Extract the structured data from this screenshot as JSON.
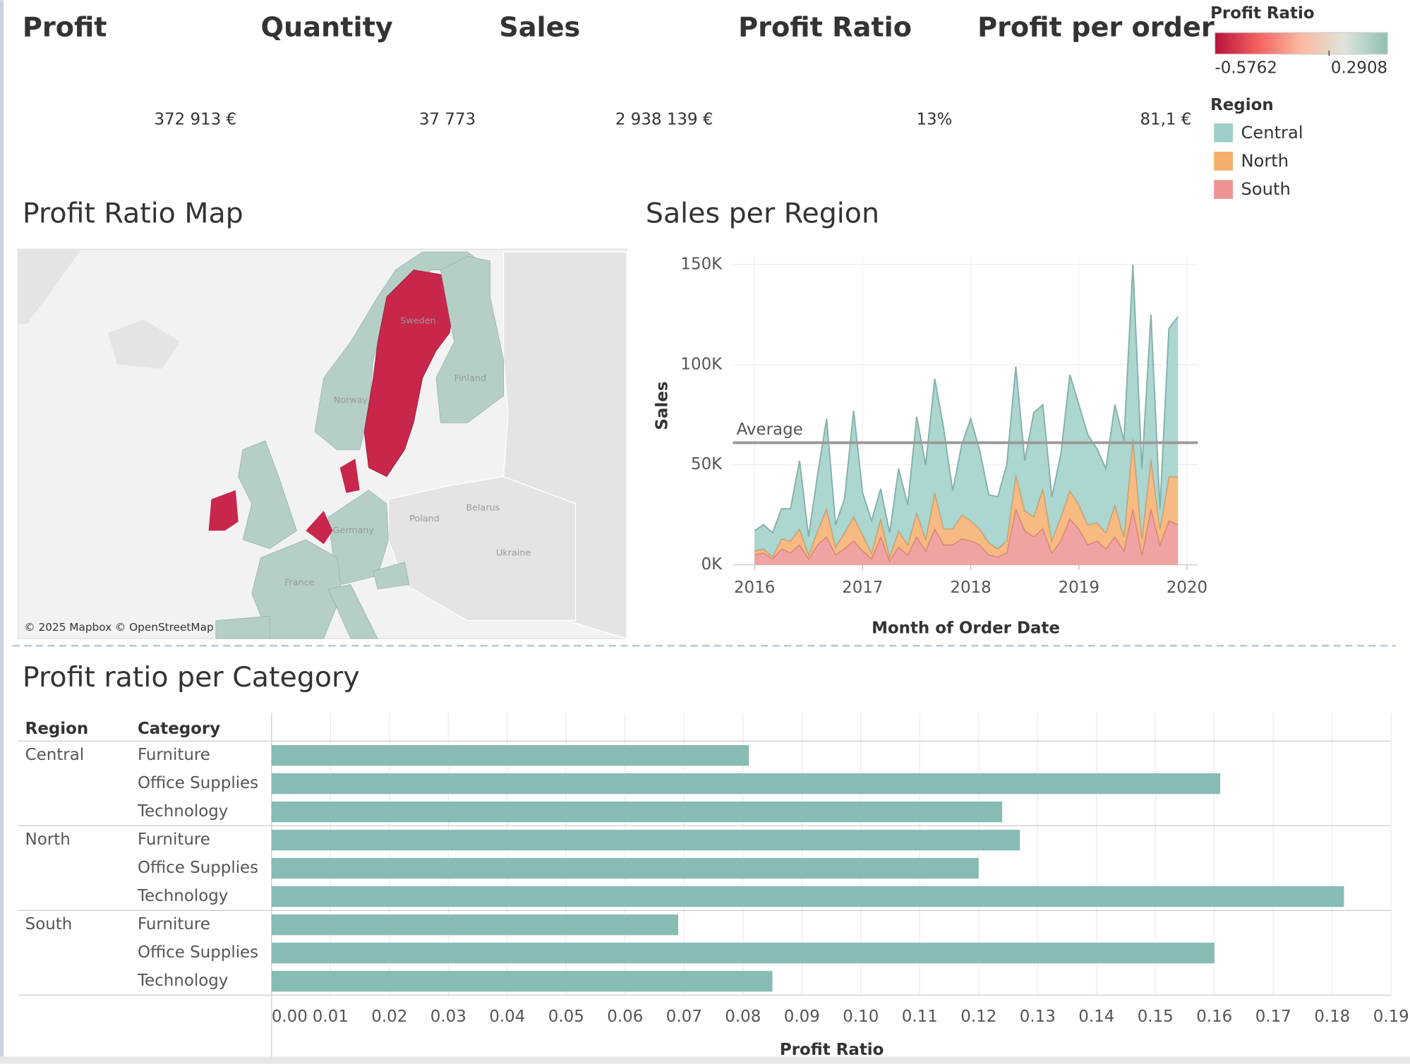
{
  "kpis": [
    {
      "title": "Profit",
      "value": "372 913 €"
    },
    {
      "title": "Quantity",
      "value": "37 773"
    },
    {
      "title": "Sales",
      "value": "2 938 139 €"
    },
    {
      "title": "Profit Ratio",
      "value": "13%"
    },
    {
      "title": "Profit per order",
      "value": "81,1 €"
    }
  ],
  "color_legend": {
    "title": "Profit Ratio",
    "min": -0.5762,
    "max": 0.2908,
    "colors": [
      "#b8123c",
      "#f4625f",
      "#fbb99f",
      "#dfe3dc",
      "#8fc1b0"
    ]
  },
  "map": {
    "title": "Profit Ratio Map",
    "labels": [
      "Sweden",
      "Finland",
      "Norway",
      "Germany",
      "France",
      "Poland",
      "Belarus",
      "Ukraine"
    ],
    "attribution": "© 2025 Mapbox © OpenStreetMap"
  },
  "chart_data": [
    {
      "type": "area",
      "title": "Sales per Region",
      "x_label": "Month of Order Date",
      "y_label": "Sales",
      "legend_title": "Region",
      "x": [
        2016,
        2016.083,
        2016.167,
        2016.25,
        2016.333,
        2016.417,
        2016.5,
        2016.583,
        2016.667,
        2016.75,
        2016.833,
        2016.917,
        2017,
        2017.083,
        2017.167,
        2017.25,
        2017.333,
        2017.417,
        2017.5,
        2017.583,
        2017.667,
        2017.75,
        2017.833,
        2017.917,
        2018,
        2018.083,
        2018.167,
        2018.25,
        2018.333,
        2018.417,
        2018.5,
        2018.583,
        2018.667,
        2018.75,
        2018.833,
        2018.917,
        2019,
        2019.083,
        2019.167,
        2019.25,
        2019.333,
        2019.417,
        2019.5,
        2019.583,
        2019.667,
        2019.75,
        2019.833,
        2019.917
      ],
      "xlim": [
        2015.8,
        2020.1
      ],
      "xticks": [
        2016,
        2017,
        2018,
        2019,
        2020
      ],
      "ylim": [
        0,
        150000
      ],
      "yticks": [
        {
          "value": 0,
          "label": "0K"
        },
        {
          "value": 50000,
          "label": "50K"
        },
        {
          "value": 100000,
          "label": "100K"
        },
        {
          "value": 150000,
          "label": "150K"
        }
      ],
      "grid": true,
      "reference_line": {
        "label": "Average",
        "value": 61000
      },
      "series": [
        {
          "name": "Central",
          "color": "#9dcfc8",
          "values": [
            10000,
            12000,
            12000,
            15000,
            16000,
            34000,
            9000,
            28000,
            45000,
            11000,
            17000,
            53000,
            21000,
            16000,
            15000,
            12000,
            31000,
            20000,
            48000,
            37000,
            57000,
            50000,
            19000,
            35000,
            51000,
            39000,
            24000,
            26000,
            38000,
            54000,
            25000,
            52000,
            42000,
            22000,
            31000,
            58000,
            50000,
            45000,
            37000,
            32000,
            50000,
            48000,
            87000,
            35000,
            72000,
            10000,
            74000,
            80000
          ]
        },
        {
          "name": "North",
          "color": "#f5ae6c",
          "values": [
            2000,
            2000,
            1000,
            5000,
            6000,
            8000,
            2000,
            7000,
            14000,
            4000,
            8000,
            12000,
            8000,
            3000,
            9000,
            2000,
            8000,
            5000,
            12000,
            6000,
            18000,
            8000,
            8000,
            12000,
            10000,
            8000,
            6000,
            4000,
            6000,
            17000,
            10000,
            10000,
            20000,
            6000,
            12000,
            14000,
            12000,
            10000,
            9000,
            8000,
            16000,
            7000,
            35000,
            8000,
            25000,
            8000,
            22000,
            24000
          ]
        },
        {
          "name": "South",
          "color": "#ee9393",
          "values": [
            5000,
            6000,
            3000,
            8000,
            6000,
            10000,
            3000,
            10000,
            14000,
            5000,
            8000,
            12000,
            7000,
            3000,
            14000,
            2000,
            9000,
            5000,
            14000,
            7000,
            18000,
            10000,
            10000,
            13000,
            12000,
            10000,
            5000,
            4000,
            6000,
            28000,
            17000,
            14000,
            18000,
            6000,
            12000,
            23000,
            18000,
            10000,
            12000,
            8000,
            14000,
            7000,
            28000,
            5000,
            28000,
            10000,
            22000,
            20000
          ]
        }
      ]
    },
    {
      "type": "bar",
      "orientation": "horizontal",
      "title": "Profit ratio per Category",
      "row_headers": [
        "Region",
        "Category"
      ],
      "groups": [
        "Central",
        "North",
        "South"
      ],
      "categories": [
        "Furniture",
        "Office Supplies",
        "Technology",
        "Furniture",
        "Office Supplies",
        "Technology",
        "Furniture",
        "Office Supplies",
        "Technology"
      ],
      "values": [
        0.081,
        0.161,
        0.124,
        0.127,
        0.12,
        0.182,
        0.069,
        0.16,
        0.085
      ],
      "color": "#86bcb3",
      "x_label": "Profit Ratio",
      "xlim": [
        0,
        0.19
      ],
      "xticks": [
        {
          "value": 0,
          "label": "0.00"
        },
        {
          "value": 0.01,
          "label": "0.01"
        },
        {
          "value": 0.02,
          "label": "0.02"
        },
        {
          "value": 0.03,
          "label": "0.03"
        },
        {
          "value": 0.04,
          "label": "0.04"
        },
        {
          "value": 0.05,
          "label": "0.05"
        },
        {
          "value": 0.06,
          "label": "0.06"
        },
        {
          "value": 0.07,
          "label": "0.07"
        },
        {
          "value": 0.08,
          "label": "0.08"
        },
        {
          "value": 0.09,
          "label": "0.09"
        },
        {
          "value": 0.1,
          "label": "0.10"
        },
        {
          "value": 0.11,
          "label": "0.11"
        },
        {
          "value": 0.12,
          "label": "0.12"
        },
        {
          "value": 0.13,
          "label": "0.13"
        },
        {
          "value": 0.14,
          "label": "0.14"
        },
        {
          "value": 0.15,
          "label": "0.15"
        },
        {
          "value": 0.16,
          "label": "0.16"
        },
        {
          "value": 0.17,
          "label": "0.17"
        },
        {
          "value": 0.18,
          "label": "0.18"
        },
        {
          "value": 0.19,
          "label": "0.19"
        }
      ]
    }
  ]
}
